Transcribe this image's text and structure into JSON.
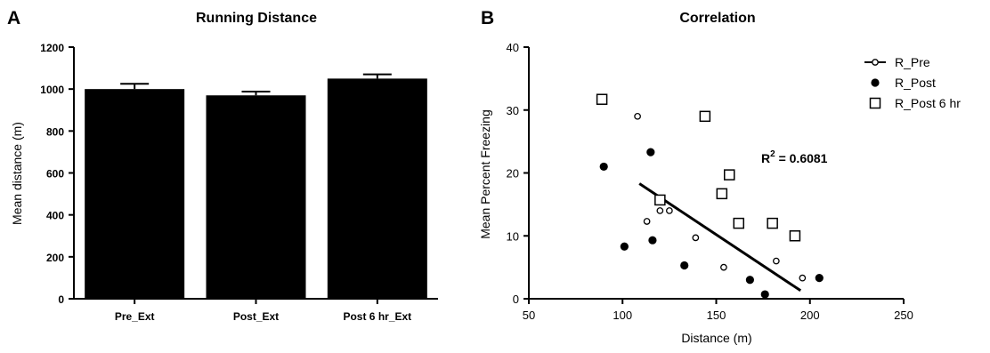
{
  "chart_data": [
    {
      "panel": "A",
      "type": "bar",
      "title": "Running Distance",
      "xlabel": "",
      "ylabel": "Mean distance (m)",
      "ylim": [
        0,
        1200
      ],
      "yticks": [
        0,
        200,
        400,
        600,
        800,
        1000,
        1200
      ],
      "categories": [
        "Pre_Ext",
        "Post_Ext",
        "Post 6 hr_Ext"
      ],
      "values": [
        1000,
        970,
        1050
      ],
      "errors": [
        25,
        18,
        20
      ],
      "bar_color": "#000000",
      "grid": false
    },
    {
      "panel": "B",
      "type": "scatter",
      "title": "Correlation",
      "xlabel": "Distance (m)",
      "ylabel": "Mean Percent Freezing",
      "xlim": [
        50,
        250
      ],
      "ylim": [
        0,
        40
      ],
      "xticks": [
        50,
        100,
        150,
        200,
        250
      ],
      "yticks": [
        0,
        10,
        20,
        30,
        40
      ],
      "legend_position": "top-right",
      "grid": false,
      "series": [
        {
          "name": "R_Pre",
          "marker": "open-circle",
          "points": [
            [
              108,
              29
            ],
            [
              113,
              12.3
            ],
            [
              120,
              14
            ],
            [
              125,
              14
            ],
            [
              139,
              9.7
            ],
            [
              154,
              5
            ],
            [
              182,
              6
            ],
            [
              196,
              3.3
            ]
          ]
        },
        {
          "name": "R_Post",
          "marker": "filled-circle",
          "points": [
            [
              90,
              21
            ],
            [
              101,
              8.3
            ],
            [
              115,
              23.3
            ],
            [
              116,
              9.3
            ],
            [
              133,
              5.3
            ],
            [
              168,
              3
            ],
            [
              176,
              0.7
            ],
            [
              205,
              3.3
            ]
          ]
        },
        {
          "name": "R_Post 6 hr",
          "marker": "open-square",
          "points": [
            [
              89,
              31.7
            ],
            [
              120,
              15.7
            ],
            [
              144,
              29
            ],
            [
              153,
              16.7
            ],
            [
              157,
              19.7
            ],
            [
              162,
              12
            ],
            [
              180,
              12
            ],
            [
              192,
              10
            ]
          ]
        }
      ],
      "fit_line": {
        "x": [
          109,
          195
        ],
        "y": [
          18.3,
          1.3
        ]
      },
      "annotation": {
        "prefix": "R",
        "superscript": "2",
        "suffix": " = 0.6081"
      }
    }
  ]
}
